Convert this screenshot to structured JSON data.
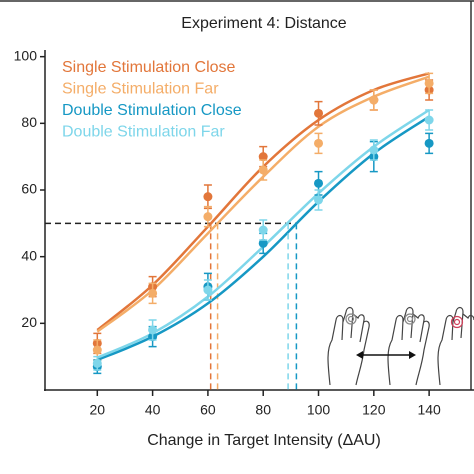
{
  "chart_data": {
    "type": "scatter",
    "title": "Experiment 4: Distance",
    "x_label": "Change in Target Intensity (ΔAU)",
    "x": [
      20,
      40,
      60,
      80,
      100,
      120,
      140
    ],
    "fit_x": [
      20,
      40,
      60,
      80,
      100,
      120,
      140
    ],
    "xlim": [
      0,
      155
    ],
    "ylim": [
      0,
      105
    ],
    "xticks": [
      20,
      40,
      60,
      80,
      100,
      120,
      140
    ],
    "yticks": [
      20,
      40,
      60,
      80,
      100
    ],
    "criterion": 50,
    "series": [
      {
        "name": "Single Stimulation Close",
        "color": "#e2763a",
        "values": [
          14,
          31,
          58,
          70,
          83,
          87,
          90
        ],
        "errors": [
          3,
          3,
          3.5,
          3,
          3.5,
          3,
          3
        ],
        "fit": [
          18,
          31.5,
          49,
          67,
          81,
          90,
          95
        ],
        "threshold": 61
      },
      {
        "name": "Single Stimulation Far",
        "color": "#f4ad68",
        "values": [
          12,
          29,
          52,
          66,
          74,
          87,
          92
        ],
        "errors": [
          3,
          3,
          3,
          3,
          3,
          3,
          3
        ],
        "fit": [
          17.5,
          30,
          47,
          64,
          79,
          88,
          94
        ],
        "threshold": 63.5
      },
      {
        "name": "Double Stimulation Close",
        "color": "#1698c4",
        "values": [
          7,
          16,
          31,
          44,
          62,
          70,
          74
        ],
        "errors": [
          2,
          3,
          4,
          3,
          3.5,
          4.5,
          3
        ],
        "fit": [
          9,
          16,
          26,
          40,
          56.5,
          71,
          82
        ],
        "threshold": 92
      },
      {
        "name": "Double Stimulation Far",
        "color": "#7ed6ea",
        "values": [
          8,
          18,
          30,
          48,
          57,
          72,
          81
        ],
        "errors": [
          2,
          3,
          3,
          3,
          3,
          3,
          3
        ],
        "fit": [
          9.7,
          17,
          28,
          43,
          59,
          73,
          84
        ],
        "threshold": 89
      }
    ]
  }
}
